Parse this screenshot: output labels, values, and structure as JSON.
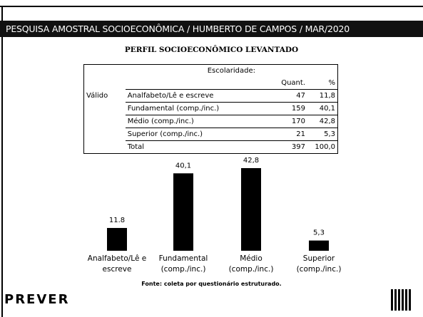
{
  "header": {
    "title": "PESQUISA AMOSTRAL SOCIOECONÔMICA / HUMBERTO DE CAMPOS / MAR/2020",
    "subtitle": "PERFIL SOCIOECONÔMICO LEVANTADO"
  },
  "table": {
    "caption": "Escolaridade:",
    "columns": [
      "Quant.",
      "%"
    ],
    "group": "Válido",
    "rows": [
      [
        "Analfabeto/Lê e escreve",
        "47",
        "11,8"
      ],
      [
        "Fundamental (comp./inc.)",
        "159",
        "40,1"
      ],
      [
        "Médio (comp./inc.)",
        "170",
        "42,8"
      ],
      [
        "Superior (comp./inc.)",
        "21",
        "5,3"
      ],
      [
        "Total",
        "397",
        "100,0"
      ]
    ]
  },
  "chart_data": {
    "type": "bar",
    "categories": [
      "Analfabeto/Lê e escreve",
      "Fundamental (comp./inc.)",
      "Médio (comp./inc.)",
      "Superior (comp./inc.)"
    ],
    "values": [
      11.8,
      40.1,
      42.8,
      5.3
    ],
    "value_labels": [
      "11.8",
      "40,1",
      "42,8",
      "5,3"
    ],
    "color": "#000000"
  },
  "footer": {
    "source": "Fonte: coleta por questionário estruturado.",
    "logo": "PREVER"
  }
}
